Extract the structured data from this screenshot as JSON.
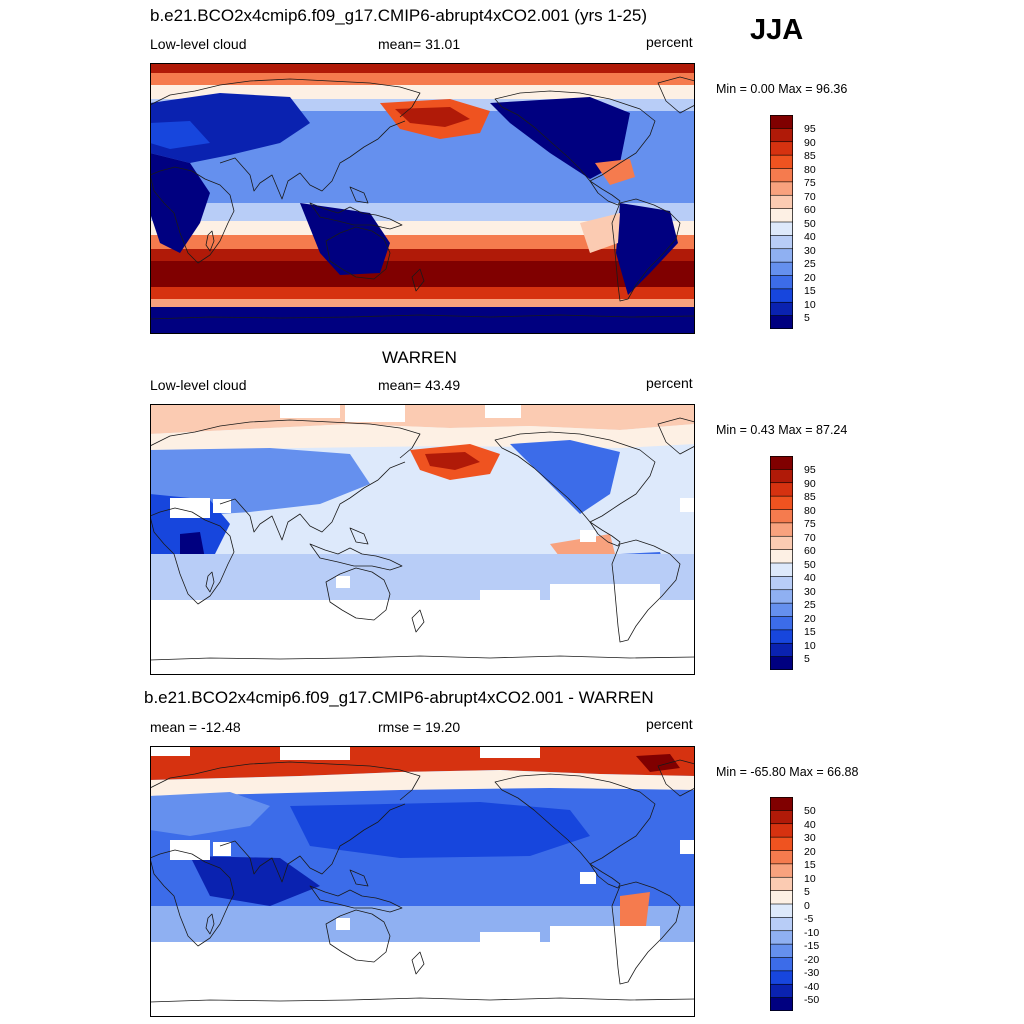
{
  "season": "JJA",
  "panels": [
    {
      "title": "b.e21.BCO2x4cmip6.f09_g17.CMIP6-abrupt4xCO2.001 (yrs 1-25)",
      "left_label": "Low-level cloud",
      "center_label": "mean=  31.01",
      "right_label": "percent",
      "minmax": "Min =   0.00 Max =  96.36",
      "colorbar_labels": [
        "95",
        "90",
        "85",
        "80",
        "75",
        "70",
        "60",
        "50",
        "40",
        "30",
        "25",
        "20",
        "15",
        "10",
        "5"
      ]
    },
    {
      "title": "WARREN",
      "left_label": "Low-level cloud",
      "center_label": "mean=  43.49",
      "right_label": "percent",
      "minmax": "Min =   0.43 Max =  87.24",
      "colorbar_labels": [
        "95",
        "90",
        "85",
        "80",
        "75",
        "70",
        "60",
        "50",
        "40",
        "30",
        "25",
        "20",
        "15",
        "10",
        "5"
      ]
    },
    {
      "title": "b.e21.BCO2x4cmip6.f09_g17.CMIP6-abrupt4xCO2.001 - WARREN",
      "left_label": "mean = -12.48",
      "center_label": "rmse =  19.20",
      "right_label": "percent",
      "minmax": "Min = -65.80 Max =  66.88",
      "colorbar_labels": [
        "50",
        "40",
        "30",
        "20",
        "15",
        "10",
        "5",
        "0",
        "-5",
        "-10",
        "-15",
        "-20",
        "-30",
        "-40",
        "-50"
      ]
    }
  ],
  "colors": {
    "levels": [
      "#800000",
      "#b01a08",
      "#d63210",
      "#ef5320",
      "#f57b4e",
      "#f8a27e",
      "#fbcbb2",
      "#fdf0e4",
      "#dde9fb",
      "#b8cdf7",
      "#8fb0f2",
      "#6590ee",
      "#3c6ce9",
      "#1746dd",
      "#0a22b0",
      "#000080"
    ],
    "missing": "#ffffff",
    "coast": "#1a1a1a"
  },
  "chart_data": [
    {
      "type": "heatmap",
      "title": "b.e21.BCO2x4cmip6.f09_g17.CMIP6-abrupt4xCO2.001 (yrs 1-25)",
      "variable": "Low-level cloud",
      "units": "percent",
      "mean": 31.01,
      "min": 0.0,
      "max": 96.36,
      "levels": [
        5,
        10,
        15,
        20,
        25,
        30,
        40,
        50,
        60,
        70,
        75,
        80,
        85,
        90,
        95
      ]
    },
    {
      "type": "heatmap",
      "title": "WARREN",
      "variable": "Low-level cloud",
      "units": "percent",
      "mean": 43.49,
      "min": 0.43,
      "max": 87.24,
      "levels": [
        5,
        10,
        15,
        20,
        25,
        30,
        40,
        50,
        60,
        70,
        75,
        80,
        85,
        90,
        95
      ]
    },
    {
      "type": "heatmap",
      "title": "b.e21.BCO2x4cmip6.f09_g17.CMIP6-abrupt4xCO2.001 - WARREN",
      "units": "percent",
      "mean": -12.48,
      "rmse": 19.2,
      "min": -65.8,
      "max": 66.88,
      "levels": [
        -50,
        -40,
        -30,
        -20,
        -15,
        -10,
        -5,
        0,
        5,
        10,
        15,
        20,
        30,
        40,
        50
      ]
    }
  ]
}
